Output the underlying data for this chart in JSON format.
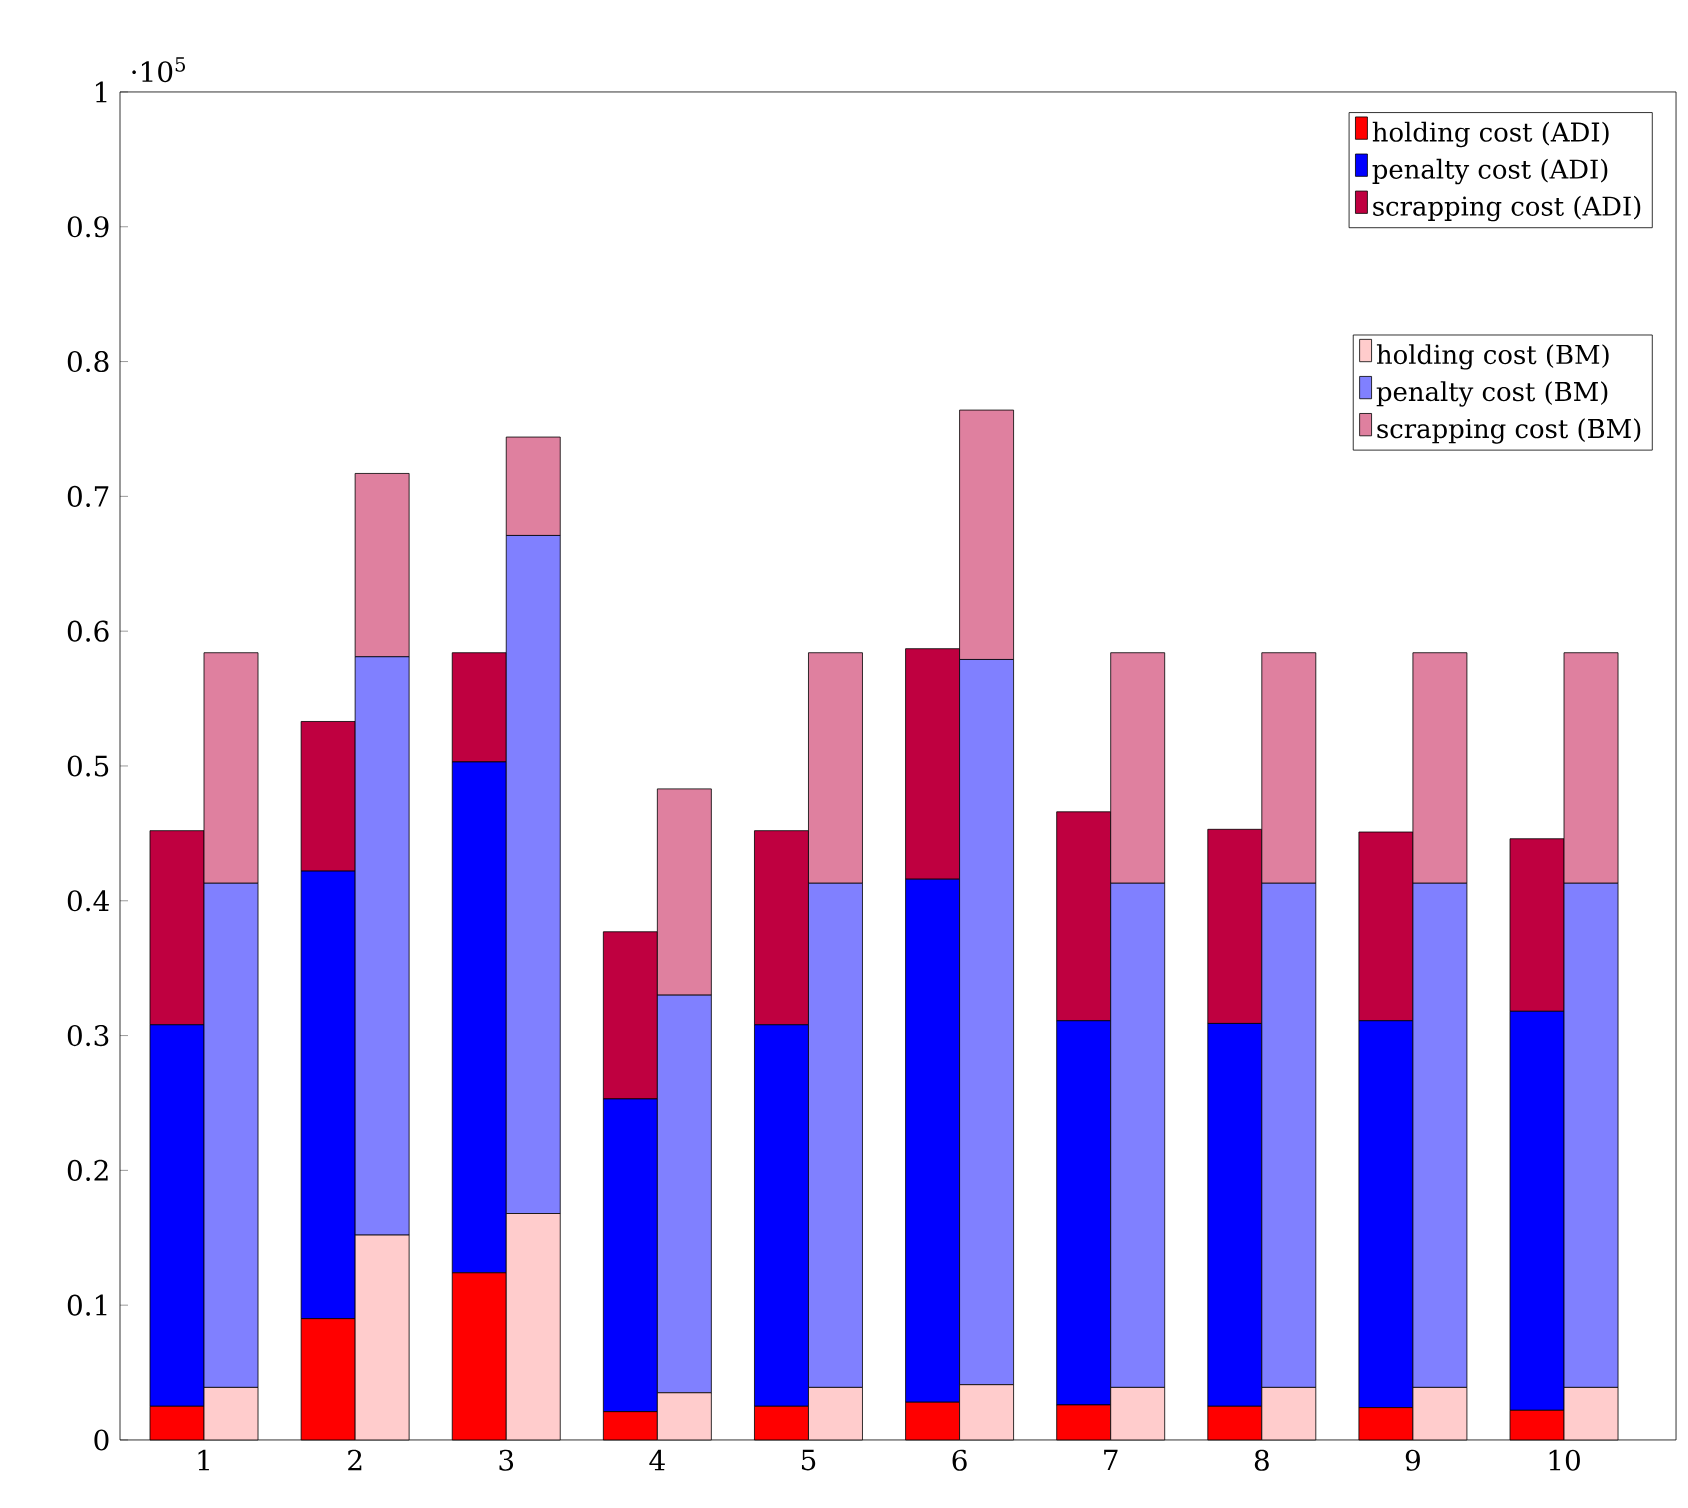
{
  "chart_data": [
    {
      "type": "bar",
      "stacked": true,
      "categories": [
        "1",
        "2",
        "3",
        "4",
        "5",
        "6",
        "7",
        "8",
        "9",
        "10"
      ],
      "series": [
        {
          "name": "holding cost (ADI)",
          "color": "#ff0000",
          "values": [
            0.025,
            0.09,
            0.124,
            0.021,
            0.025,
            0.028,
            0.026,
            0.025,
            0.024,
            0.022
          ]
        },
        {
          "name": "penalty cost (ADI)",
          "color": "#0000ff",
          "values": [
            0.283,
            0.332,
            0.379,
            0.232,
            0.283,
            0.388,
            0.285,
            0.284,
            0.287,
            0.296
          ]
        },
        {
          "name": "scrapping cost (ADI)",
          "color": "#bf0040",
          "values": [
            0.144,
            0.111,
            0.081,
            0.124,
            0.144,
            0.171,
            0.155,
            0.144,
            0.14,
            0.128
          ]
        }
      ],
      "ylim": [
        0,
        1
      ],
      "yticks": [
        0,
        0.1,
        0.2,
        0.3,
        0.4,
        0.5,
        0.6,
        0.7,
        0.8,
        0.9,
        1
      ],
      "annotations": [
        "·10$^{5}$"
      ],
      "legend": "top right"
    },
    {
      "type": "bar",
      "stacked": true,
      "categories": [
        "1",
        "2",
        "3",
        "4",
        "5",
        "6",
        "7",
        "8",
        "9",
        "10"
      ],
      "series": [
        {
          "name": "holding cost (BM)",
          "color": "#ffcccc",
          "values": [
            0.039,
            0.152,
            0.168,
            0.035,
            0.039,
            0.041,
            0.039,
            0.039,
            0.039,
            0.039
          ]
        },
        {
          "name": "penalty cost (BM)",
          "color": "#8080ff",
          "values": [
            0.374,
            0.429,
            0.503,
            0.295,
            0.374,
            0.538,
            0.374,
            0.374,
            0.374,
            0.374
          ]
        },
        {
          "name": "scrapping cost (BM)",
          "color": "#df809f",
          "values": [
            0.171,
            0.136,
            0.073,
            0.153,
            0.171,
            0.185,
            0.171,
            0.171,
            0.171,
            0.171
          ]
        }
      ],
      "ylim": [
        0,
        1
      ],
      "yticks": [
        0,
        0.1,
        0.2,
        0.3,
        0.4,
        0.5,
        0.6,
        0.7,
        0.8,
        0.9,
        1
      ],
      "tick_labels": false,
      "legend": "top right"
    }
  ]
}
